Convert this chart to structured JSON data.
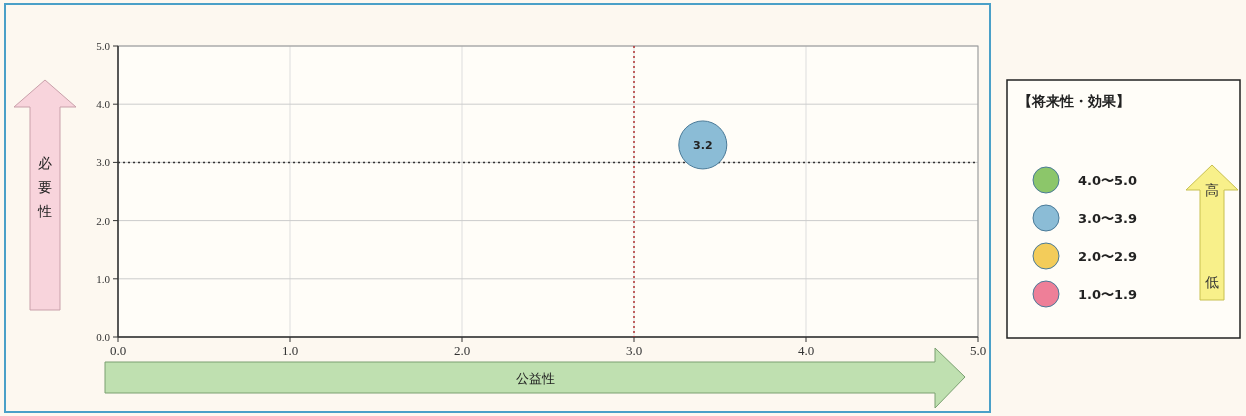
{
  "chart_data": {
    "type": "scatter",
    "xlabel": "公益性",
    "ylabel": "必要性",
    "legend_title": "【将来性・効果】",
    "xlim": [
      0,
      5
    ],
    "ylim": [
      0,
      5
    ],
    "xticks": [
      {
        "value": 0,
        "label": "0.0"
      },
      {
        "value": 1,
        "label": "1.0"
      },
      {
        "value": 2,
        "label": "2.0"
      },
      {
        "value": 3,
        "label": "3.0"
      },
      {
        "value": 4,
        "label": "4.0"
      },
      {
        "value": 5,
        "label": "5.0"
      }
    ],
    "yticks": [
      {
        "value": 0,
        "label": "0.0"
      },
      {
        "value": 1,
        "label": "1.0"
      },
      {
        "value": 2,
        "label": "2.0"
      },
      {
        "value": 3,
        "label": "3.0"
      },
      {
        "value": 4,
        "label": "4.0"
      },
      {
        "value": 5,
        "label": "5.0"
      }
    ],
    "x": [
      3.4
    ],
    "series": [
      {
        "name": "4.0〜5.0",
        "color": "#8cc66a",
        "values": [
          null
        ]
      },
      {
        "name": "3.0〜3.9",
        "color": "#8bbcd6",
        "values": [
          3.3
        ]
      },
      {
        "name": "2.0〜2.9",
        "color": "#f3cc5a",
        "values": [
          null
        ]
      },
      {
        "name": "1.0〜1.9",
        "color": "#ee7f98",
        "values": [
          null
        ]
      }
    ],
    "ref_lines": [
      {
        "axis": "x",
        "value": 3,
        "color": "#b03030",
        "line_style": "dotted"
      },
      {
        "axis": "y",
        "value": 3,
        "color": "#333333",
        "line_style": "dotted"
      }
    ],
    "annotations": [
      {
        "text": "3.2",
        "x": 3.4,
        "y": 3.3
      },
      "高",
      "低"
    ],
    "grid": true,
    "legend": "right",
    "marker": "circle"
  }
}
